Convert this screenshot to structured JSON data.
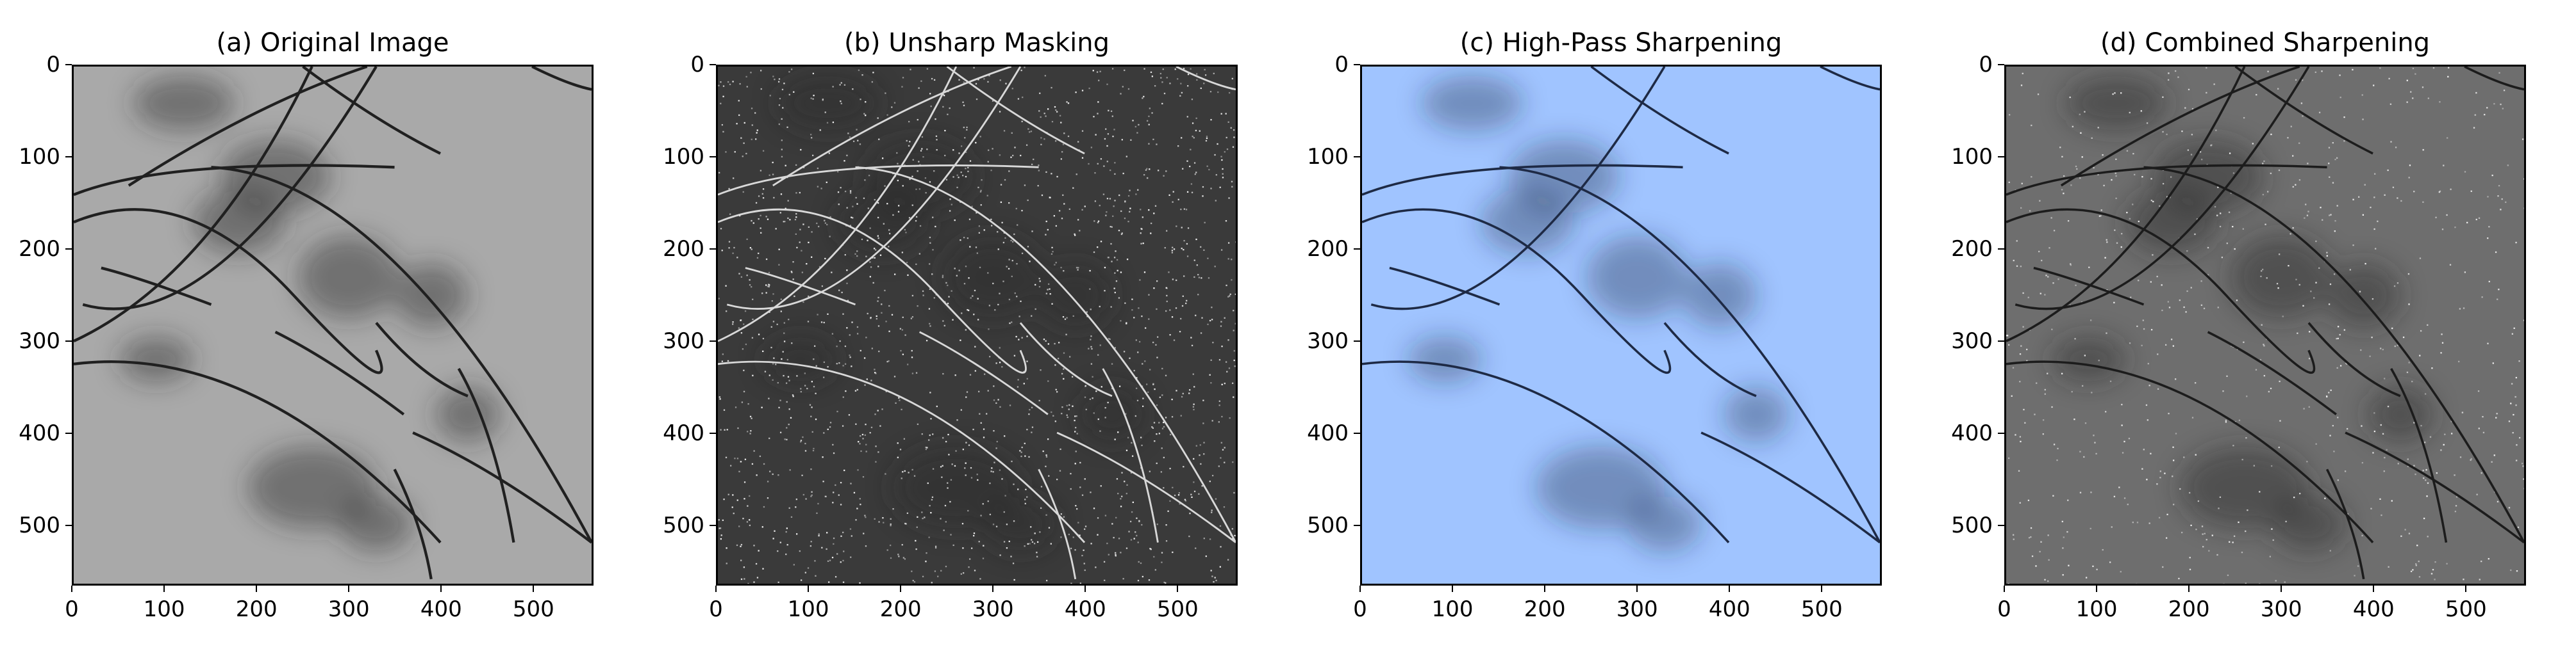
{
  "panels": [
    {
      "id": "original",
      "title": "(a) Original Image",
      "style": "grayscale-light",
      "x_ticks": [
        "0",
        "100",
        "200",
        "300",
        "400",
        "500"
      ],
      "y_ticks": [
        "0",
        "100",
        "200",
        "300",
        "400",
        "500"
      ]
    },
    {
      "id": "unsharp",
      "title": "(b) Unsharp Masking",
      "style": "grayscale-dark-noisy",
      "x_ticks": [
        "0",
        "100",
        "200",
        "300",
        "400",
        "500"
      ],
      "y_ticks": [
        "0",
        "100",
        "200",
        "300",
        "400",
        "500"
      ]
    },
    {
      "id": "highpass",
      "title": "(c) High-Pass Sharpening",
      "style": "blue-highpass",
      "x_ticks": [
        "0",
        "100",
        "200",
        "300",
        "400",
        "500"
      ],
      "y_ticks": [
        "0",
        "100",
        "200",
        "300",
        "400",
        "500"
      ]
    },
    {
      "id": "combined",
      "title": "(d) Combined Sharpening",
      "style": "grayscale-mid-noisy",
      "x_ticks": [
        "0",
        "100",
        "200",
        "300",
        "400",
        "500"
      ],
      "y_ticks": [
        "0",
        "100",
        "200",
        "300",
        "400",
        "500"
      ]
    }
  ],
  "colors": {
    "highpass_background": "#a0c4ff",
    "highpass_dark": "#1e2a45"
  }
}
